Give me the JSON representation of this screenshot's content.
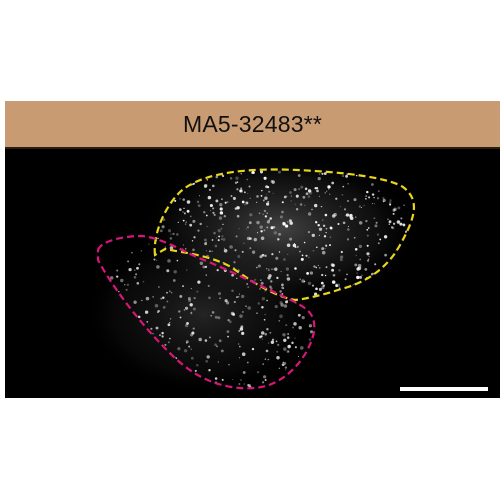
{
  "figure": {
    "title": "MA5-32483**",
    "colors": {
      "header_bg": "#c99b73",
      "background": "#000000",
      "yellow_outline": "#e8d61a",
      "magenta_outline": "#d8157a",
      "speckle": "#ffffff",
      "scale_bar": "#ffffff"
    }
  }
}
